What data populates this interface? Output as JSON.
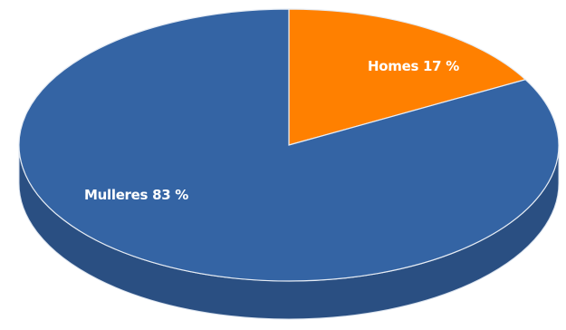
{
  "chart_data": {
    "type": "pie",
    "style": "3d",
    "slices": [
      {
        "label": "Homes",
        "value": 17,
        "value_label": "17 %",
        "color": "#FF8000",
        "side_color": "#C86400"
      },
      {
        "label": "Mulleres",
        "value": 83,
        "value_label": "83 %",
        "color": "#3464A4",
        "side_color": "#2A4F82"
      }
    ],
    "data_labels": [
      "Homes 17 %",
      "Mulleres  83 %"
    ],
    "start_angle": "12 o'clock",
    "direction": "clockwise",
    "legend": "none"
  }
}
